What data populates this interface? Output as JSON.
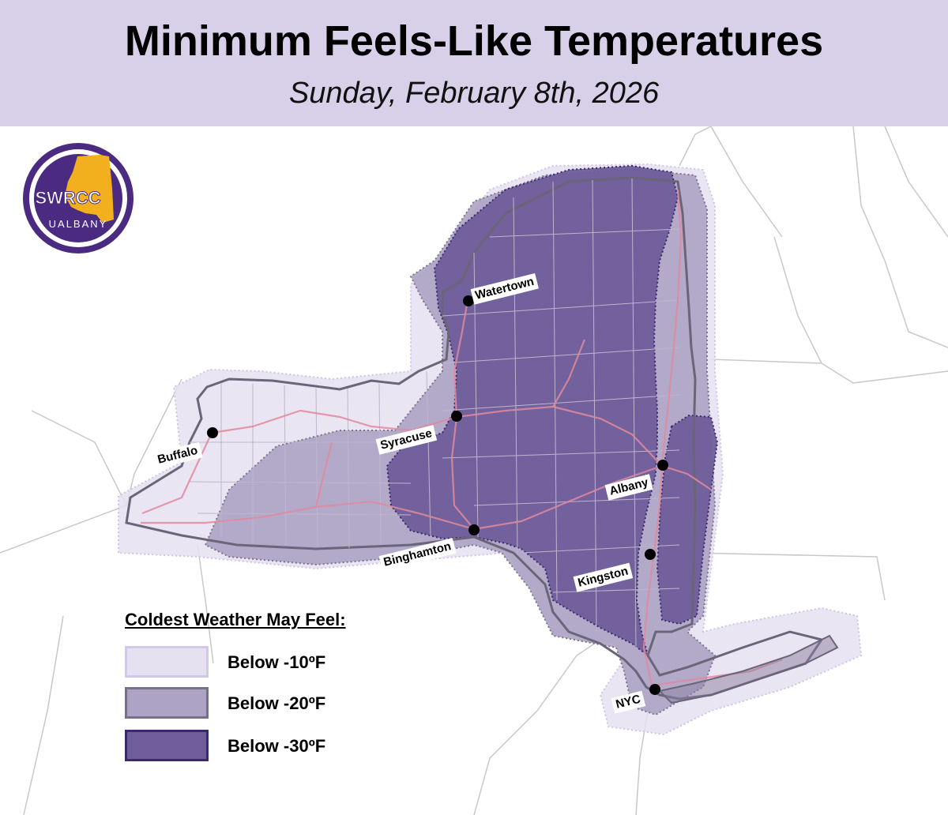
{
  "header": {
    "title": "Minimum Feels-Like Temperatures",
    "subtitle": "Sunday, February 8th, 2026"
  },
  "logo": {
    "text": "SWRCC",
    "subtext": "UALBANY",
    "ring_color": "#4b2a82",
    "accent_color": "#f2b01e"
  },
  "cities": [
    {
      "id": "watertown",
      "name": "Watertown"
    },
    {
      "id": "syracuse",
      "name": "Syracuse"
    },
    {
      "id": "buffalo",
      "name": "Buffalo"
    },
    {
      "id": "albany",
      "name": "Albany"
    },
    {
      "id": "binghamton",
      "name": "Binghamton"
    },
    {
      "id": "kingston",
      "name": "Kingston"
    },
    {
      "id": "nyc",
      "name": "NYC"
    }
  ],
  "legend": {
    "title": "Coldest Weather May Feel:",
    "items": [
      {
        "label": "Below -10ºF",
        "fill": "#e6e1f1",
        "stroke": "#d2c9e6"
      },
      {
        "label": "Below -20ºF",
        "fill": "#ada3c4",
        "stroke": "#787088"
      },
      {
        "label": "Below -30ºF",
        "fill": "#6f5d9b",
        "stroke": "#3b2a6b"
      }
    ]
  },
  "colors": {
    "header_bg": "#d8d0e8",
    "roads": "#e0899e",
    "state_lines": "#c8c8c8"
  }
}
